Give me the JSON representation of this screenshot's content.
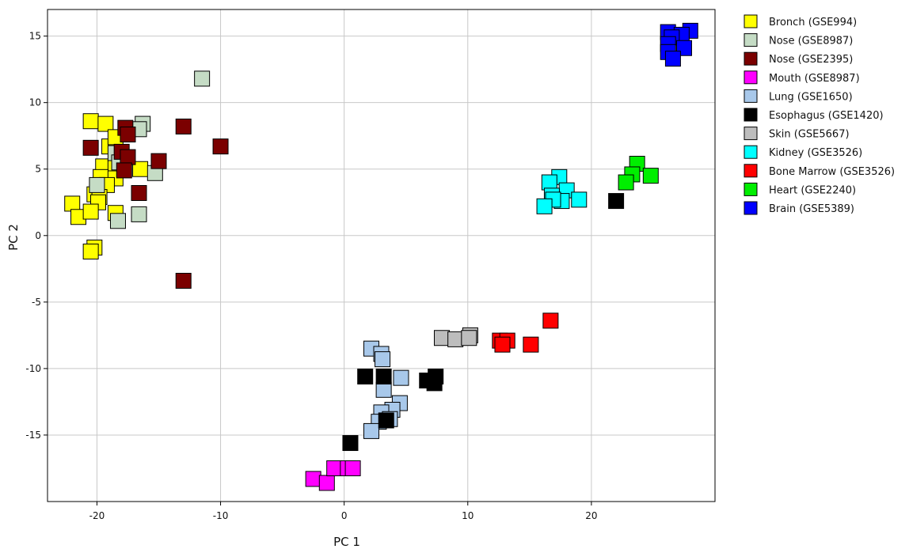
{
  "chart_data": {
    "type": "scatter",
    "title": "",
    "xlabel": "PC 1",
    "ylabel": "PC 2",
    "xlim": [
      -24,
      30
    ],
    "ylim": [
      -20,
      17
    ],
    "xticks": [
      -20,
      -10,
      0,
      10,
      20
    ],
    "yticks": [
      15,
      10,
      5,
      0,
      -5,
      -10,
      -15
    ],
    "grid": true,
    "legend_position": "right",
    "series": [
      {
        "name": "Bronch (GSE994)",
        "color": "#ffff00",
        "points": [
          [
            -20.5,
            8.6
          ],
          [
            -19.3,
            8.4
          ],
          [
            -19,
            6.7
          ],
          [
            -18.5,
            7.4
          ],
          [
            -19.5,
            5.2
          ],
          [
            -18.5,
            5.1
          ],
          [
            -16.5,
            5
          ],
          [
            -19.7,
            4.4
          ],
          [
            -18.5,
            4.3
          ],
          [
            -20.2,
            3.1
          ],
          [
            -19.2,
            3.8
          ],
          [
            -19.8,
            2.9
          ],
          [
            -22,
            2.4
          ],
          [
            -21.5,
            1.4
          ],
          [
            -19.9,
            2.5
          ],
          [
            -20.5,
            1.8
          ],
          [
            -18.5,
            1.7
          ],
          [
            -20.2,
            -0.9
          ],
          [
            -20.5,
            -1.2
          ]
        ]
      },
      {
        "name": "Nose (GSE8987)",
        "color": "#c5dcc5",
        "points": [
          [
            -11.5,
            11.8
          ],
          [
            -16.3,
            8.4
          ],
          [
            -16.6,
            8.0
          ],
          [
            -18.5,
            6.2
          ],
          [
            -18.2,
            5.5
          ],
          [
            -15.3,
            4.7
          ],
          [
            -20,
            3.8
          ],
          [
            -16.6,
            1.6
          ],
          [
            -18.3,
            1.1
          ]
        ]
      },
      {
        "name": "Nose (GSE2395)",
        "color": "#7b0000",
        "points": [
          [
            -17.7,
            8.1
          ],
          [
            -13,
            8.2
          ],
          [
            -17.5,
            7.6
          ],
          [
            -20.5,
            6.6
          ],
          [
            -10,
            6.7
          ],
          [
            -18,
            6.3
          ],
          [
            -17.5,
            5.9
          ],
          [
            -15,
            5.6
          ],
          [
            -17.8,
            4.9
          ],
          [
            -16.6,
            3.2
          ],
          [
            -13,
            -3.4
          ]
        ]
      },
      {
        "name": "Mouth (GSE8987)",
        "color": "#ff00ff",
        "points": [
          [
            -2.5,
            -18.3
          ],
          [
            -1.4,
            -18.6
          ],
          [
            -0.8,
            -17.5
          ],
          [
            0.3,
            -17.5
          ],
          [
            0.7,
            -17.5
          ]
        ]
      },
      {
        "name": "Lung (GSE1650)",
        "color": "#a8c8ea",
        "points": [
          [
            2.2,
            -8.5
          ],
          [
            3,
            -8.9
          ],
          [
            3.1,
            -9.3
          ],
          [
            4.6,
            -10.7
          ],
          [
            3.2,
            -11.6
          ],
          [
            4.5,
            -12.6
          ],
          [
            3.9,
            -13.1
          ],
          [
            3,
            -13.3
          ],
          [
            2.8,
            -14.0
          ],
          [
            2.2,
            -14.7
          ],
          [
            3.7,
            -13.8
          ]
        ]
      },
      {
        "name": "Esophagus (GSE1420)",
        "color": "#000000",
        "points": [
          [
            22,
            2.6
          ],
          [
            1.7,
            -10.6
          ],
          [
            3.2,
            -10.6
          ],
          [
            6.7,
            -10.9
          ],
          [
            7.4,
            -10.6
          ],
          [
            7.3,
            -11.1
          ],
          [
            3.4,
            -13.9
          ],
          [
            0.5,
            -15.6
          ]
        ]
      },
      {
        "name": "Skin (GSE5667)",
        "color": "#bdbdbd",
        "points": [
          [
            7.9,
            -7.7
          ],
          [
            9,
            -7.8
          ],
          [
            10.2,
            -7.5
          ],
          [
            10.1,
            -7.7
          ]
        ]
      },
      {
        "name": "Kidney (GSE3526)",
        "color": "#00ffff",
        "points": [
          [
            17.4,
            4.4
          ],
          [
            16.6,
            4.0
          ],
          [
            18,
            3.4
          ],
          [
            16.8,
            3.0
          ],
          [
            19,
            2.7
          ],
          [
            17.6,
            2.6
          ],
          [
            16.9,
            2.7
          ],
          [
            16.2,
            2.2
          ]
        ]
      },
      {
        "name": "Bone Marrow (GSE3526)",
        "color": "#ff0000",
        "points": [
          [
            16.7,
            -6.4
          ],
          [
            12.6,
            -7.9
          ],
          [
            13.2,
            -7.9
          ],
          [
            12.8,
            -8.2
          ],
          [
            15.1,
            -8.2
          ]
        ]
      },
      {
        "name": "Heart (GSE2240)",
        "color": "#00ee00",
        "points": [
          [
            23.7,
            5.4
          ],
          [
            23.3,
            4.6
          ],
          [
            24.8,
            4.5
          ],
          [
            22.8,
            4.0
          ]
        ]
      },
      {
        "name": "Brain (GSE5389)",
        "color": "#0000ff",
        "points": [
          [
            26.2,
            15.3
          ],
          [
            28,
            15.4
          ],
          [
            27.3,
            15.1
          ],
          [
            26.5,
            14.9
          ],
          [
            26.2,
            14.4
          ],
          [
            27.5,
            14.1
          ],
          [
            26.2,
            13.8
          ],
          [
            26.6,
            13.3
          ]
        ]
      }
    ]
  }
}
